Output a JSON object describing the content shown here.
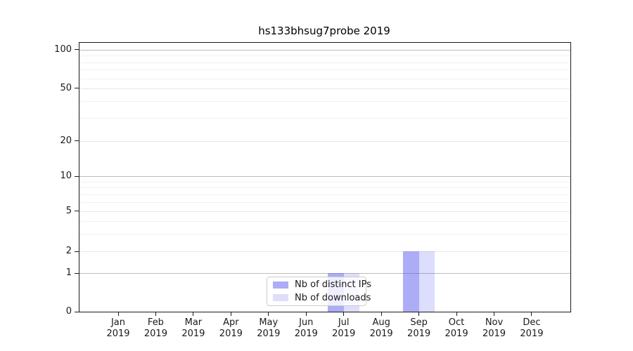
{
  "chart_data": {
    "type": "bar",
    "title": "hs133bhsug7probe 2019",
    "categories": [
      "Jan",
      "Feb",
      "Mar",
      "Apr",
      "May",
      "Jun",
      "Jul",
      "Aug",
      "Sep",
      "Oct",
      "Nov",
      "Dec"
    ],
    "category_year": "2019",
    "series": [
      {
        "name": "Nb of distinct IPs",
        "color": "rgba(85,85,238,0.49)",
        "observed_hex": "#ababf7",
        "values": [
          0,
          0,
          0,
          0,
          0,
          0,
          1,
          0,
          2,
          0,
          0,
          0
        ]
      },
      {
        "name": "Nb of downloads",
        "color": "rgba(85,85,238,0.20)",
        "observed_hex": "#dedefa",
        "values": [
          0,
          0,
          0,
          0,
          0,
          0,
          1,
          0,
          2,
          0,
          0,
          0
        ]
      }
    ],
    "y_axis": {
      "scale": "symlog",
      "range": [
        0,
        100
      ],
      "ticks": [
        0,
        1,
        2,
        5,
        10,
        20,
        50,
        100
      ],
      "minor_gridlines": [
        3,
        4,
        6,
        7,
        8,
        9,
        30,
        40,
        60,
        70,
        80,
        90
      ]
    },
    "x_axis": {
      "tick_label_lines": 2
    },
    "legend": {
      "position": "lower center"
    },
    "grid": true,
    "colors": {
      "spine": "#1a1a1a",
      "major_grid": "#bdbdbd",
      "minor_grid": "#f0f0f0"
    }
  }
}
